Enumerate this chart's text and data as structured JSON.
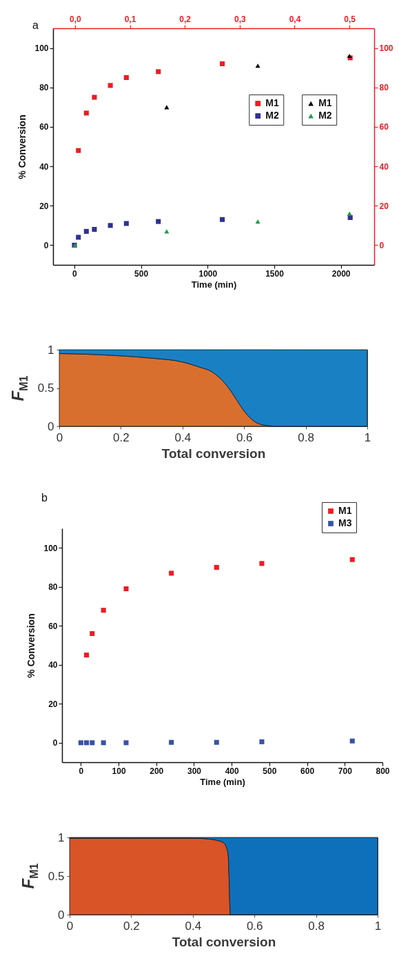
{
  "chart_data": [
    {
      "type": "scatter",
      "title": "a",
      "xlabel": "Time (min)",
      "ylabel": "% Conversion",
      "xlim": [
        -160,
        2250
      ],
      "xticks": [
        0,
        500,
        1000,
        1500,
        2000
      ],
      "x2lim": [
        -0.04,
        0.545
      ],
      "x2ticks": [
        {
          "value": 0,
          "label": "0,0"
        },
        {
          "value": 0.1,
          "label": "0,1"
        },
        {
          "value": 0.2,
          "label": "0,2"
        },
        {
          "value": 0.3,
          "label": "0,3"
        },
        {
          "value": 0.4,
          "label": "0,4"
        },
        {
          "value": 0.5,
          "label": "0,5"
        }
      ],
      "ylim": [
        -10,
        110
      ],
      "yticks": [
        0,
        20,
        40,
        60,
        80,
        100
      ],
      "y2lim": [
        -10,
        110
      ],
      "y2ticks": [
        0,
        20,
        40,
        60,
        80,
        100
      ],
      "legend": "right",
      "series": [
        {
          "name": "M1",
          "color": "#ed1c24",
          "marker": "square",
          "x": [
            30,
            90,
            150,
            270,
            390,
            630,
            1110,
            2070
          ],
          "values": [
            48,
            67,
            75,
            81,
            85,
            88,
            92,
            95
          ]
        },
        {
          "name": "M2",
          "color": "#2e3192",
          "marker": "square",
          "x": [
            0,
            30,
            90,
            150,
            270,
            390,
            630,
            1110,
            2070
          ],
          "values": [
            0,
            4,
            7,
            8,
            10,
            11,
            12,
            13,
            14
          ]
        },
        {
          "name": "M1",
          "color": "#000000",
          "marker": "triangle",
          "axis": "x2",
          "x": [
            0.167,
            0.333,
            0.5
          ],
          "values": [
            70,
            91,
            96
          ]
        },
        {
          "name": "M2",
          "color": "#1f9e48",
          "marker": "triangle",
          "axis": "x2",
          "x": [
            0,
            0.167,
            0.333,
            0.5
          ],
          "values": [
            0,
            7,
            12,
            16
          ]
        }
      ]
    },
    {
      "type": "area",
      "xlabel": "Total conversion",
      "ylabel": "F$_{M1}$",
      "xlim": [
        0,
        1
      ],
      "xticks": [
        0,
        0.2,
        0.4,
        0.6,
        0.8,
        1
      ],
      "ylim": [
        0,
        1
      ],
      "yticks": [
        0,
        0.5,
        1
      ],
      "stacked": true,
      "x": [
        0,
        0.1,
        0.2,
        0.3,
        0.4,
        0.45,
        0.5,
        0.55,
        0.575,
        0.6,
        0.625,
        0.65,
        0.675,
        0.7,
        0.8,
        1
      ],
      "series": [
        {
          "color": "#d96f2f",
          "values": [
            0.95,
            0.94,
            0.92,
            0.89,
            0.84,
            0.78,
            0.7,
            0.5,
            0.35,
            0.2,
            0.09,
            0.03,
            0.01,
            0,
            0,
            0
          ]
        },
        {
          "color": "#1a80c4",
          "values": [
            0.05,
            0.06,
            0.08,
            0.11,
            0.16,
            0.22,
            0.3,
            0.5,
            0.65,
            0.8,
            0.91,
            0.97,
            0.99,
            1,
            1,
            1
          ]
        }
      ]
    },
    {
      "type": "scatter",
      "title": "b",
      "xlabel": "Time (min)",
      "ylabel": "% Conversion",
      "xlim": [
        -50,
        800
      ],
      "xticks": [
        0,
        100,
        200,
        300,
        400,
        500,
        600,
        700,
        800
      ],
      "ylim": [
        -10,
        110
      ],
      "yticks": [
        0,
        20,
        40,
        60,
        80,
        100
      ],
      "legend": "top right",
      "series": [
        {
          "name": "M1",
          "color": "#ed1c24",
          "marker": "square",
          "x": [
            15,
            30,
            60,
            120,
            240,
            360,
            480,
            720
          ],
          "values": [
            45,
            56,
            68,
            79,
            87,
            90,
            92,
            94
          ]
        },
        {
          "name": "M3",
          "color": "#3953a4",
          "marker": "square",
          "x": [
            0,
            15,
            30,
            60,
            120,
            240,
            360,
            480,
            720
          ],
          "values": [
            0,
            0,
            0,
            0,
            0,
            0.2,
            0.2,
            0.5,
            0.9
          ]
        }
      ]
    },
    {
      "type": "area",
      "xlabel": "Total conversion",
      "ylabel": "F$_{M1}$",
      "xlim": [
        0,
        1
      ],
      "xticks": [
        0,
        0.2,
        0.4,
        0.6,
        0.8,
        1
      ],
      "ylim": [
        0,
        1
      ],
      "yticks": [
        0,
        0.5,
        1
      ],
      "stacked": true,
      "x": [
        0,
        0.2,
        0.3,
        0.4,
        0.45,
        0.48,
        0.5,
        0.51,
        0.515,
        0.522,
        0.6,
        0.8,
        1
      ],
      "series": [
        {
          "color": "#d95427",
          "values": [
            0.99,
            0.99,
            0.99,
            0.99,
            0.98,
            0.96,
            0.93,
            0.86,
            0.76,
            0,
            0,
            0,
            0
          ]
        },
        {
          "color": "#0e70bb",
          "values": [
            0.01,
            0.01,
            0.01,
            0.01,
            0.02,
            0.04,
            0.07,
            0.14,
            0.24,
            1,
            1,
            1,
            1
          ]
        }
      ]
    }
  ]
}
